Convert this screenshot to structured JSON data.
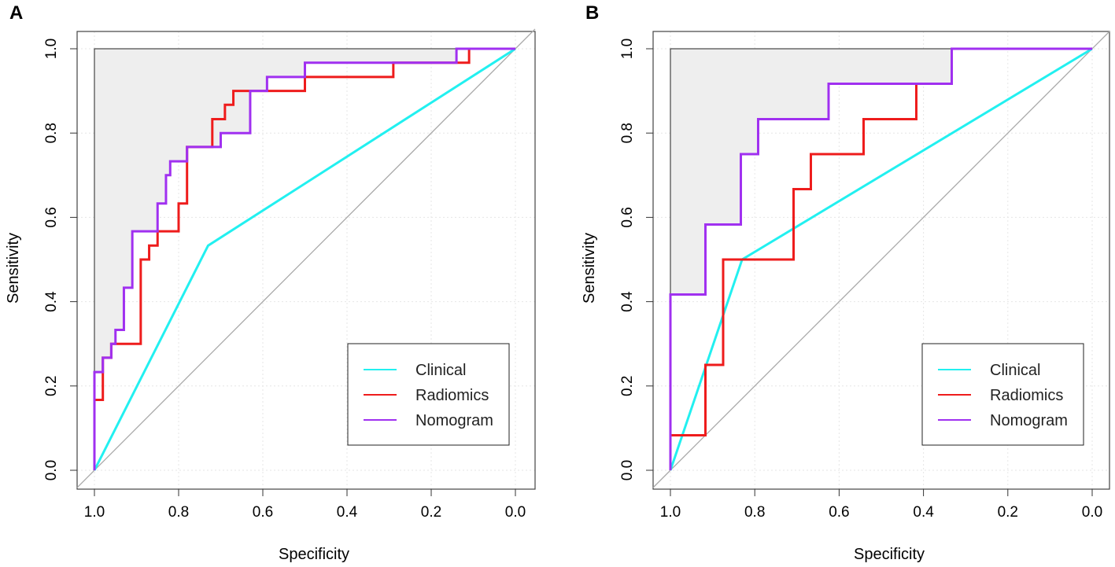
{
  "chart_data": [
    {
      "type": "line",
      "panel_label": "A",
      "xlabel": "Specificity",
      "ylabel": "Sensitivity",
      "xlim": [
        1.0,
        0.0
      ],
      "ylim": [
        0.0,
        1.0
      ],
      "x_ticks": [
        "1.0",
        "0.8",
        "0.6",
        "0.4",
        "0.2",
        "0.0"
      ],
      "y_ticks": [
        "0.0",
        "0.2",
        "0.4",
        "0.6",
        "0.8",
        "1.0"
      ],
      "x_tick_values": [
        1.0,
        0.8,
        0.6,
        0.4,
        0.2,
        0.0
      ],
      "y_tick_values": [
        0.0,
        0.2,
        0.4,
        0.6,
        0.8,
        1.0
      ],
      "grid": true,
      "diagonal_reference": true,
      "legend_position": "bottom-right",
      "legend": [
        "Clinical",
        "Radiomics",
        "Nomogram"
      ],
      "series": [
        {
          "name": "Clinical",
          "color": "#22f0f0",
          "points": [
            [
              1.0,
              0.0
            ],
            [
              0.73,
              0.533
            ],
            [
              0.0,
              1.0
            ]
          ]
        },
        {
          "name": "Radiomics",
          "color": "#ee1c1c",
          "points": [
            [
              1.0,
              0.0
            ],
            [
              1.0,
              0.167
            ],
            [
              0.98,
              0.167
            ],
            [
              0.98,
              0.267
            ],
            [
              0.96,
              0.267
            ],
            [
              0.96,
              0.3
            ],
            [
              0.89,
              0.3
            ],
            [
              0.89,
              0.5
            ],
            [
              0.87,
              0.5
            ],
            [
              0.87,
              0.533
            ],
            [
              0.85,
              0.533
            ],
            [
              0.85,
              0.567
            ],
            [
              0.8,
              0.567
            ],
            [
              0.8,
              0.633
            ],
            [
              0.78,
              0.633
            ],
            [
              0.78,
              0.767
            ],
            [
              0.72,
              0.767
            ],
            [
              0.72,
              0.833
            ],
            [
              0.69,
              0.833
            ],
            [
              0.69,
              0.867
            ],
            [
              0.67,
              0.867
            ],
            [
              0.67,
              0.9
            ],
            [
              0.5,
              0.9
            ],
            [
              0.5,
              0.933
            ],
            [
              0.29,
              0.933
            ],
            [
              0.29,
              0.967
            ],
            [
              0.11,
              0.967
            ],
            [
              0.11,
              1.0
            ],
            [
              0.0,
              1.0
            ]
          ]
        },
        {
          "name": "Nomogram",
          "color": "#a030f0",
          "points": [
            [
              1.0,
              0.0
            ],
            [
              1.0,
              0.233
            ],
            [
              0.98,
              0.233
            ],
            [
              0.98,
              0.267
            ],
            [
              0.96,
              0.267
            ],
            [
              0.96,
              0.3
            ],
            [
              0.95,
              0.3
            ],
            [
              0.95,
              0.333
            ],
            [
              0.93,
              0.333
            ],
            [
              0.93,
              0.433
            ],
            [
              0.91,
              0.433
            ],
            [
              0.91,
              0.567
            ],
            [
              0.85,
              0.567
            ],
            [
              0.85,
              0.633
            ],
            [
              0.83,
              0.633
            ],
            [
              0.83,
              0.7
            ],
            [
              0.82,
              0.7
            ],
            [
              0.82,
              0.733
            ],
            [
              0.78,
              0.733
            ],
            [
              0.78,
              0.767
            ],
            [
              0.7,
              0.767
            ],
            [
              0.7,
              0.8
            ],
            [
              0.63,
              0.8
            ],
            [
              0.63,
              0.9
            ],
            [
              0.59,
              0.9
            ],
            [
              0.59,
              0.933
            ],
            [
              0.5,
              0.933
            ],
            [
              0.5,
              0.967
            ],
            [
              0.14,
              0.967
            ],
            [
              0.14,
              1.0
            ],
            [
              0.0,
              1.0
            ]
          ]
        }
      ]
    },
    {
      "type": "line",
      "panel_label": "B",
      "xlabel": "Specificity",
      "ylabel": "Sensitivity",
      "xlim": [
        1.0,
        0.0
      ],
      "ylim": [
        0.0,
        1.0
      ],
      "x_ticks": [
        "1.0",
        "0.8",
        "0.6",
        "0.4",
        "0.2",
        "0.0"
      ],
      "y_ticks": [
        "0.0",
        "0.2",
        "0.4",
        "0.6",
        "0.8",
        "1.0"
      ],
      "x_tick_values": [
        1.0,
        0.8,
        0.6,
        0.4,
        0.2,
        0.0
      ],
      "y_tick_values": [
        0.0,
        0.2,
        0.4,
        0.6,
        0.8,
        1.0
      ],
      "grid": true,
      "diagonal_reference": true,
      "legend_position": "bottom-right",
      "legend": [
        "Clinical",
        "Radiomics",
        "Nomogram"
      ],
      "series": [
        {
          "name": "Clinical",
          "color": "#22f0f0",
          "points": [
            [
              1.0,
              0.0
            ],
            [
              0.83,
              0.5
            ],
            [
              0.0,
              1.0
            ]
          ]
        },
        {
          "name": "Radiomics",
          "color": "#ee1c1c",
          "points": [
            [
              1.0,
              0.0
            ],
            [
              1.0,
              0.083
            ],
            [
              0.917,
              0.083
            ],
            [
              0.917,
              0.25
            ],
            [
              0.875,
              0.25
            ],
            [
              0.875,
              0.5
            ],
            [
              0.708,
              0.5
            ],
            [
              0.708,
              0.667
            ],
            [
              0.667,
              0.667
            ],
            [
              0.667,
              0.75
            ],
            [
              0.542,
              0.75
            ],
            [
              0.542,
              0.833
            ],
            [
              0.417,
              0.833
            ],
            [
              0.417,
              0.917
            ],
            [
              0.333,
              0.917
            ],
            [
              0.333,
              1.0
            ],
            [
              0.0,
              1.0
            ]
          ]
        },
        {
          "name": "Nomogram",
          "color": "#a030f0",
          "points": [
            [
              1.0,
              0.0
            ],
            [
              1.0,
              0.417
            ],
            [
              0.917,
              0.417
            ],
            [
              0.917,
              0.583
            ],
            [
              0.833,
              0.583
            ],
            [
              0.833,
              0.75
            ],
            [
              0.792,
              0.75
            ],
            [
              0.792,
              0.833
            ],
            [
              0.625,
              0.833
            ],
            [
              0.625,
              0.917
            ],
            [
              0.333,
              0.917
            ],
            [
              0.333,
              1.0
            ],
            [
              0.0,
              1.0
            ]
          ]
        }
      ]
    }
  ]
}
